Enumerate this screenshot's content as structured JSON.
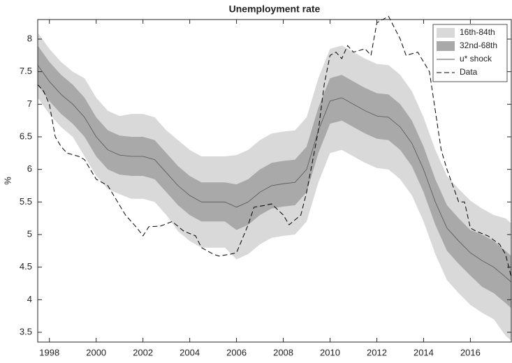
{
  "chart_data": {
    "type": "line",
    "title": "Unemployment rate",
    "ylabel": "%",
    "x": [
      1997.5,
      1998,
      1998.5,
      1999,
      1999.5,
      2000,
      2000.5,
      2001,
      2001.5,
      2002,
      2002.5,
      2003,
      2003.5,
      2004,
      2004.5,
      2005,
      2005.5,
      2006,
      2006.5,
      2007,
      2007.5,
      2008,
      2008.5,
      2009,
      2009.5,
      2010,
      2010.5,
      2011,
      2011.5,
      2012,
      2012.5,
      2013,
      2013.5,
      2014,
      2014.5,
      2015,
      2015.5,
      2016,
      2016.5,
      2017,
      2017.5,
      2017.75
    ],
    "series": [
      {
        "name": "16th-84th",
        "color": "#d9d9d9",
        "lower": [
          7.1,
          6.85,
          6.65,
          6.5,
          6.2,
          5.9,
          5.7,
          5.62,
          5.55,
          5.55,
          5.5,
          5.3,
          5.05,
          4.9,
          4.8,
          4.8,
          4.8,
          4.62,
          4.7,
          4.85,
          4.95,
          4.98,
          5.0,
          5.2,
          5.8,
          6.25,
          6.3,
          6.2,
          6.1,
          6.02,
          6.0,
          5.85,
          5.6,
          5.2,
          4.7,
          4.3,
          4.1,
          3.92,
          3.8,
          3.7,
          3.45,
          3.37
        ],
        "upper": [
          8.1,
          7.85,
          7.65,
          7.5,
          7.4,
          7.1,
          6.9,
          6.82,
          6.85,
          6.85,
          6.8,
          6.6,
          6.45,
          6.3,
          6.2,
          6.2,
          6.2,
          6.22,
          6.3,
          6.45,
          6.55,
          6.58,
          6.6,
          6.8,
          7.4,
          7.85,
          7.9,
          7.8,
          7.7,
          7.62,
          7.6,
          7.45,
          7.2,
          6.8,
          6.3,
          5.9,
          5.7,
          5.52,
          5.4,
          5.3,
          5.25,
          5.17
        ]
      },
      {
        "name": "32nd-68th",
        "color": "#a9a9a9",
        "lower": [
          7.3,
          7.05,
          6.85,
          6.7,
          6.5,
          6.2,
          6.0,
          5.92,
          5.9,
          5.9,
          5.85,
          5.65,
          5.45,
          5.3,
          5.2,
          5.2,
          5.2,
          5.07,
          5.15,
          5.3,
          5.4,
          5.43,
          5.45,
          5.65,
          6.25,
          6.7,
          6.75,
          6.65,
          6.55,
          6.47,
          6.45,
          6.3,
          6.05,
          5.65,
          5.15,
          4.75,
          4.55,
          4.37,
          4.2,
          4.1,
          3.95,
          3.87
        ],
        "upper": [
          7.9,
          7.65,
          7.45,
          7.3,
          7.1,
          6.8,
          6.6,
          6.52,
          6.5,
          6.5,
          6.45,
          6.25,
          6.05,
          5.9,
          5.8,
          5.8,
          5.8,
          5.77,
          5.85,
          6.0,
          6.1,
          6.13,
          6.15,
          6.35,
          6.95,
          7.4,
          7.45,
          7.35,
          7.25,
          7.17,
          7.15,
          7.0,
          6.75,
          6.35,
          5.85,
          5.45,
          5.25,
          5.07,
          5.0,
          4.9,
          4.75,
          4.67
        ]
      },
      {
        "name": "u* shock",
        "color": "#555555",
        "values": [
          7.6,
          7.35,
          7.15,
          7.0,
          6.8,
          6.5,
          6.3,
          6.22,
          6.2,
          6.2,
          6.15,
          5.95,
          5.75,
          5.6,
          5.5,
          5.5,
          5.5,
          5.42,
          5.5,
          5.65,
          5.75,
          5.78,
          5.8,
          6.0,
          6.6,
          7.05,
          7.1,
          7.0,
          6.9,
          6.82,
          6.8,
          6.65,
          6.4,
          6.0,
          5.5,
          5.1,
          4.9,
          4.72,
          4.6,
          4.5,
          4.35,
          4.27
        ]
      },
      {
        "name": "Data",
        "color": "#000000",
        "dash": true,
        "x": [
          1997.5,
          1997.75,
          1998,
          1998.25,
          1998.5,
          1998.75,
          1999.25,
          1999.5,
          2000,
          2000.5,
          2000.75,
          2001.25,
          2001.75,
          2002,
          2002.25,
          2002.75,
          2003.25,
          2003.75,
          2004.25,
          2004.5,
          2005,
          2005.25,
          2005.75,
          2006,
          2006.5,
          2006.75,
          2007.25,
          2007.5,
          2008,
          2008.25,
          2008.75,
          2009,
          2009.5,
          2009.75,
          2010,
          2010.25,
          2010.5,
          2010.75,
          2011,
          2011.5,
          2011.75,
          2012,
          2012.25,
          2012.5,
          2013,
          2013.25,
          2013.75,
          2014.25,
          2014.5,
          2014.75,
          2015,
          2015.5,
          2015.75,
          2016,
          2016.25,
          2016.75,
          2017.25,
          2017.5,
          2017.75
        ],
        "values": [
          7.3,
          7.2,
          7.0,
          6.5,
          6.35,
          6.25,
          6.2,
          6.15,
          5.85,
          5.75,
          5.6,
          5.3,
          5.1,
          4.98,
          5.12,
          5.13,
          5.2,
          5.05,
          4.98,
          4.8,
          4.7,
          4.67,
          4.7,
          4.72,
          5.15,
          5.42,
          5.45,
          5.47,
          5.3,
          5.15,
          5.3,
          5.65,
          6.6,
          7.3,
          7.75,
          7.8,
          7.7,
          7.9,
          7.8,
          7.85,
          7.75,
          8.25,
          8.3,
          8.35,
          8.0,
          7.75,
          7.8,
          7.5,
          6.9,
          6.3,
          6.0,
          5.5,
          5.5,
          5.1,
          5.05,
          4.98,
          4.85,
          4.7,
          4.35
        ]
      }
    ],
    "xlim": [
      1997.5,
      2017.75
    ],
    "xticks": [
      1998,
      2000,
      2002,
      2004,
      2006,
      2008,
      2010,
      2012,
      2014,
      2016
    ],
    "ylim": [
      3.35,
      8.3
    ],
    "yticks": [
      3.5,
      4,
      4.5,
      5,
      5.5,
      6,
      6.5,
      7,
      7.5,
      8
    ],
    "legend": "top-right"
  }
}
